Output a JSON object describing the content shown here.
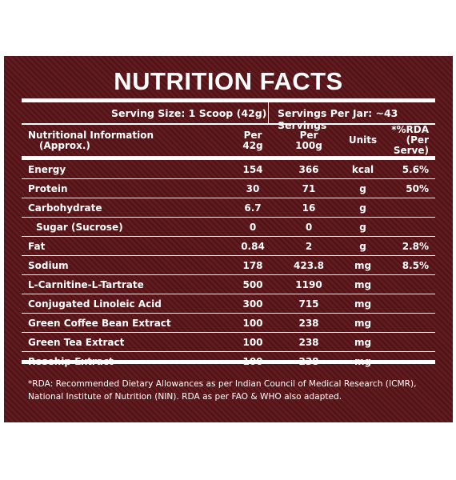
{
  "title": "NUTRITION FACTS",
  "serving_size": "Serving Size: 1 Scoop (42g)",
  "servings_per_jar": "Servings Per Jar: ~43 Servings",
  "headers": {
    "name_line1": "Nutritional Information",
    "name_line2": "(Approx.)",
    "per42_line1": "Per",
    "per42_line2": "42g",
    "per100_line1": "Per",
    "per100_line2": "100g",
    "units": "Units",
    "rda_line1": "*%RDA",
    "rda_line2": "(Per Serve)"
  },
  "rows": [
    {
      "name": "Energy",
      "per42": "154",
      "per100": "366",
      "unit": "kcal",
      "rda": "5.6%"
    },
    {
      "name": "Protein",
      "per42": "30",
      "per100": "71",
      "unit": "g",
      "rda": "50%"
    },
    {
      "name": "Carbohydrate",
      "per42": "6.7",
      "per100": "16",
      "unit": "g",
      "rda": ""
    },
    {
      "name": "Sugar (Sucrose)",
      "per42": "0",
      "per100": "0",
      "unit": "g",
      "rda": ""
    },
    {
      "name": "Fat",
      "per42": "0.84",
      "per100": "2",
      "unit": "g",
      "rda": "2.8%"
    },
    {
      "name": "Sodium",
      "per42": "178",
      "per100": "423.8",
      "unit": "mg",
      "rda": "8.5%"
    },
    {
      "name": "L-Carnitine-L-Tartrate",
      "per42": "500",
      "per100": "1190",
      "unit": "mg",
      "rda": ""
    },
    {
      "name": "Conjugated Linoleic Acid",
      "per42": "300",
      "per100": "715",
      "unit": "mg",
      "rda": ""
    },
    {
      "name": "Green Coffee Bean Extract",
      "per42": "100",
      "per100": "238",
      "unit": "mg",
      "rda": ""
    },
    {
      "name": "Green Tea Extract",
      "per42": "100",
      "per100": "238",
      "unit": "mg",
      "rda": ""
    },
    {
      "name": "Rosehip Extract",
      "per42": "100",
      "per100": "238",
      "unit": "mg",
      "rda": ""
    }
  ],
  "footnote_line1": "*RDA: Recommended Dietary Allowances as per Indian Council of Medical Research (ICMR),",
  "footnote_line2": "National Institute of Nutrition (NIN). RDA as per FAO & WHO also adapted.",
  "colors": {
    "background": "#5a1418",
    "text": "#ffffff"
  }
}
